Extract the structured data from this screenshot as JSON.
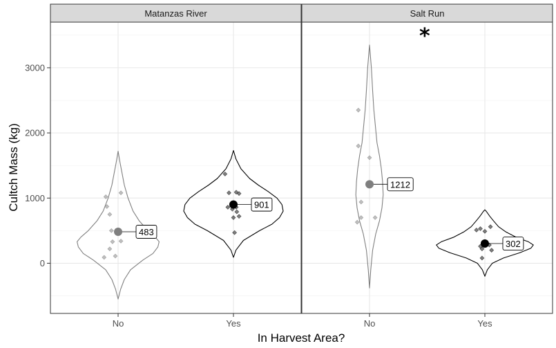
{
  "chart_data": {
    "type": "violin",
    "xlabel": "In Harvest Area?",
    "ylabel": "Cultch Mass (kg)",
    "ylim": [
      -770,
      3700
    ],
    "yticks": [
      0,
      1000,
      2000,
      3000
    ],
    "categories": [
      "No",
      "Yes"
    ],
    "grid": true,
    "panels": [
      {
        "title": "Matanzas River",
        "significance": "",
        "groups": [
          {
            "category": "No",
            "mean": 483,
            "mean_label": "483",
            "color": "#7f7f7f",
            "violin": [
              [
                -550,
                0.0
              ],
              [
                -400,
                0.04
              ],
              [
                -250,
                0.1
              ],
              [
                -100,
                0.2
              ],
              [
                50,
                0.4
              ],
              [
                150,
                0.56
              ],
              [
                250,
                0.64
              ],
              [
                330,
                0.66
              ],
              [
                400,
                0.6
              ],
              [
                500,
                0.48
              ],
              [
                650,
                0.34
              ],
              [
                800,
                0.24
              ],
              [
                1000,
                0.16
              ],
              [
                1200,
                0.1
              ],
              [
                1400,
                0.06
              ],
              [
                1550,
                0.03
              ],
              [
                1720,
                0.0
              ]
            ],
            "points": [
              [
                -0.22,
                1020
              ],
              [
                0.05,
                1080
              ],
              [
                -0.2,
                870
              ],
              [
                -0.15,
                750
              ],
              [
                -0.12,
                500
              ],
              [
                -0.1,
                330
              ],
              [
                -0.15,
                220
              ],
              [
                -0.25,
                90
              ],
              [
                -0.05,
                110
              ],
              [
                0.05,
                340
              ]
            ]
          },
          {
            "category": "Yes",
            "mean": 901,
            "mean_label": "901",
            "color": "#000000",
            "violin": [
              [
                90,
                0.0
              ],
              [
                200,
                0.04
              ],
              [
                350,
                0.16
              ],
              [
                500,
                0.42
              ],
              [
                600,
                0.62
              ],
              [
                700,
                0.74
              ],
              [
                800,
                0.8
              ],
              [
                900,
                0.78
              ],
              [
                1000,
                0.7
              ],
              [
                1100,
                0.56
              ],
              [
                1200,
                0.4
              ],
              [
                1300,
                0.26
              ],
              [
                1450,
                0.12
              ],
              [
                1600,
                0.04
              ],
              [
                1730,
                0.0
              ]
            ],
            "points": [
              [
                -0.15,
                1370
              ],
              [
                -0.08,
                1080
              ],
              [
                0.05,
                1090
              ],
              [
                0.1,
                1070
              ],
              [
                -0.1,
                860
              ],
              [
                0.05,
                860
              ],
              [
                -0.02,
                830
              ],
              [
                0.06,
                790
              ],
              [
                0.1,
                720
              ],
              [
                0.0,
                700
              ],
              [
                0.02,
                470
              ]
            ]
          }
        ]
      },
      {
        "title": "Salt Run",
        "significance": "*",
        "groups": [
          {
            "category": "No",
            "mean": 1212,
            "mean_label": "1212",
            "color": "#7f7f7f",
            "violin": [
              [
                -380,
                0.0
              ],
              [
                -100,
                0.02
              ],
              [
                200,
                0.05
              ],
              [
                450,
                0.1
              ],
              [
                650,
                0.16
              ],
              [
                850,
                0.2
              ],
              [
                1050,
                0.22
              ],
              [
                1250,
                0.21
              ],
              [
                1450,
                0.19
              ],
              [
                1650,
                0.16
              ],
              [
                1850,
                0.12
              ],
              [
                2050,
                0.1
              ],
              [
                2350,
                0.07
              ],
              [
                2650,
                0.05
              ],
              [
                3000,
                0.03
              ],
              [
                3350,
                0.0
              ]
            ],
            "points": [
              [
                -0.2,
                2350
              ],
              [
                -0.2,
                1800
              ],
              [
                0.0,
                1620
              ],
              [
                -0.15,
                940
              ],
              [
                -0.15,
                700
              ],
              [
                -0.22,
                630
              ],
              [
                0.1,
                700
              ]
            ]
          },
          {
            "category": "Yes",
            "mean": 302,
            "mean_label": "302",
            "color": "#000000",
            "violin": [
              [
                -200,
                0.0
              ],
              [
                -100,
                0.04
              ],
              [
                0,
                0.12
              ],
              [
                80,
                0.3
              ],
              [
                160,
                0.56
              ],
              [
                230,
                0.74
              ],
              [
                280,
                0.78
              ],
              [
                330,
                0.7
              ],
              [
                400,
                0.5
              ],
              [
                480,
                0.34
              ],
              [
                560,
                0.22
              ],
              [
                650,
                0.14
              ],
              [
                720,
                0.08
              ],
              [
                800,
                0.02
              ],
              [
                820,
                0.0
              ]
            ],
            "points": [
              [
                -0.15,
                510
              ],
              [
                -0.08,
                530
              ],
              [
                0.1,
                560
              ],
              [
                0.0,
                490
              ],
              [
                -0.08,
                260
              ],
              [
                -0.05,
                220
              ],
              [
                0.08,
                280
              ],
              [
                0.12,
                200
              ],
              [
                -0.05,
                80
              ]
            ]
          }
        ]
      }
    ]
  }
}
